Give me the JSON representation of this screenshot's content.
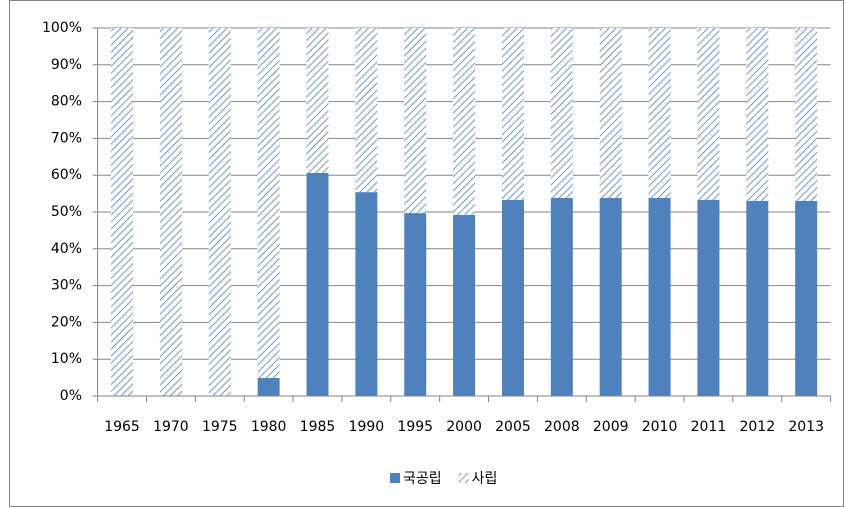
{
  "chart_data": {
    "type": "stacked_bar",
    "categories": [
      "1965",
      "1970",
      "1975",
      "1980",
      "1985",
      "1990",
      "1995",
      "2000",
      "2005",
      "2008",
      "2009",
      "2010",
      "2011",
      "2012",
      "2013"
    ],
    "series": [
      {
        "name": "국공립",
        "color": "#4f81bd",
        "hatch": false,
        "values": [
          0,
          0,
          0,
          4.9,
          60.6,
          55.4,
          49.7,
          49.2,
          53.3,
          53.8,
          53.8,
          53.8,
          53.3,
          53,
          53
        ]
      },
      {
        "name": "사립",
        "color": "#4f81bd",
        "hatch": true,
        "values": [
          100,
          100,
          100,
          95.1,
          39.4,
          44.6,
          50.3,
          50.8,
          46.7,
          46.2,
          46.2,
          46.2,
          46.7,
          47,
          47
        ]
      }
    ],
    "ylim": [
      0,
      100
    ],
    "yticks": [
      {
        "value": 0,
        "label": "0%"
      },
      {
        "value": 10,
        "label": "10%"
      },
      {
        "value": 20,
        "label": "20%"
      },
      {
        "value": 30,
        "label": "30%"
      },
      {
        "value": 40,
        "label": "40%"
      },
      {
        "value": 50,
        "label": "50%"
      },
      {
        "value": 60,
        "label": "60%"
      },
      {
        "value": 70,
        "label": "70%"
      },
      {
        "value": 80,
        "label": "80%"
      },
      {
        "value": 90,
        "label": "90%"
      },
      {
        "value": 100,
        "label": "100%"
      }
    ],
    "grid": true,
    "legend": "bottom"
  }
}
